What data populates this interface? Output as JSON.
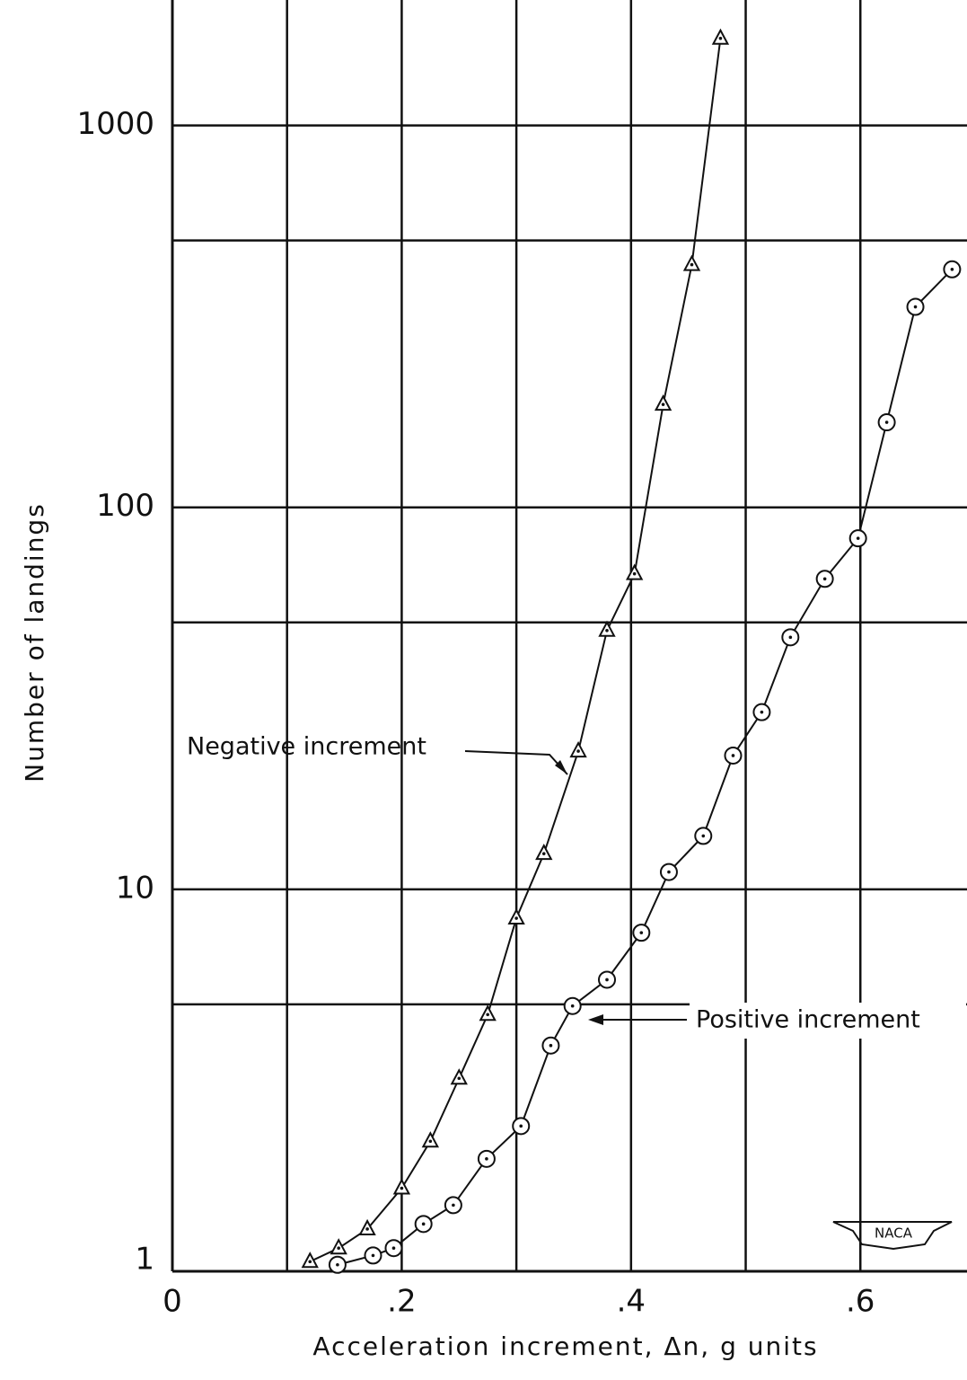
{
  "chart_data": {
    "type": "scatter",
    "x_label": "Acceleration increment, Δn, g units",
    "y_label": "Number of landings",
    "xlim": [
      0,
      0.693
    ],
    "ylim": [
      1,
      2130
    ],
    "log_y": true,
    "grid": true,
    "xticks": [
      0,
      {
        "value": 0.2,
        "label": ".2"
      },
      {
        "value": 0.4,
        "label": ".4"
      },
      {
        "value": 0.6,
        "label": ".6"
      }
    ],
    "xminor": [
      0.1,
      0.3,
      0.5
    ],
    "yticks": [
      1,
      10,
      100,
      1000
    ],
    "yminor": [
      5,
      50,
      500
    ],
    "series": [
      {
        "name": "Negative increment",
        "marker": "triangle",
        "color": "#111111",
        "x": [
          0.12,
          0.145,
          0.17,
          0.2,
          0.225,
          0.25,
          0.275,
          0.3,
          0.324,
          0.354,
          0.379,
          0.403,
          0.428,
          0.453,
          0.478
        ],
        "values": [
          1.06,
          1.15,
          1.29,
          1.65,
          2.19,
          3.2,
          4.7,
          8.4,
          12.4,
          23,
          47.6,
          67,
          186,
          432,
          1690
        ]
      },
      {
        "name": "Positive increment",
        "marker": "circle",
        "color": "#111111",
        "x": [
          0.144,
          0.175,
          0.193,
          0.219,
          0.245,
          0.274,
          0.304,
          0.33,
          0.349,
          0.379,
          0.409,
          0.433,
          0.463,
          0.489,
          0.514,
          0.539,
          0.569,
          0.598,
          0.623,
          0.648,
          0.68
        ],
        "values": [
          1.04,
          1.1,
          1.15,
          1.33,
          1.49,
          1.97,
          2.4,
          3.9,
          4.95,
          5.8,
          7.7,
          11.1,
          13.8,
          22.4,
          29.1,
          45.7,
          65,
          83,
          167,
          335,
          420
        ]
      }
    ],
    "logo": "NACA"
  }
}
